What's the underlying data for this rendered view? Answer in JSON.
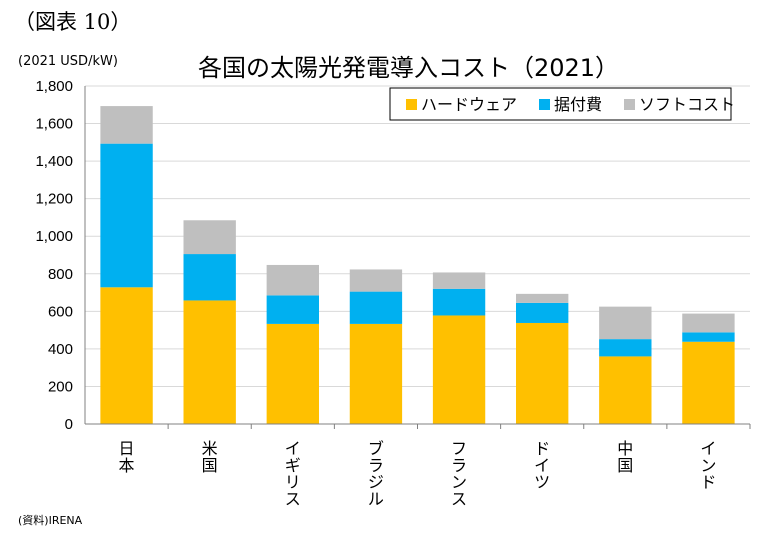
{
  "figure_label": "（図表 10）",
  "unit": "(2021 USD/kW)",
  "source": "(資料)IRENA",
  "colors": {
    "hardware": "#FFC000",
    "installation": "#00B0F0",
    "soft": "#BFBFBF",
    "grid": "#D9D9D9",
    "axis": "#808080"
  },
  "chart_data": {
    "type": "bar",
    "stacked": true,
    "title": "各国の太陽光発電導入コスト（2021）",
    "ylabel": "(2021 USD/kW)",
    "ylim": [
      0,
      1800
    ],
    "yticks": [
      0,
      200,
      400,
      600,
      800,
      1000,
      1200,
      1400,
      1600,
      1800
    ],
    "ytick_labels": [
      "0",
      "200",
      "400",
      "600",
      "800",
      "1,000",
      "1,200",
      "1,400",
      "1,600",
      "1,800"
    ],
    "grid": true,
    "legend_position": "top-right",
    "categories": [
      "日本",
      "米国",
      "イギリス",
      "ブラジル",
      "フランス",
      "ドイツ",
      "中国",
      "インド"
    ],
    "series": [
      {
        "name": "ハードウェア",
        "color": "#FFC000",
        "values": [
          728,
          658,
          533,
          533,
          578,
          538,
          360,
          438
        ]
      },
      {
        "name": "据付費",
        "color": "#00B0F0",
        "values": [
          765,
          247,
          152,
          172,
          142,
          107,
          92,
          50
        ]
      },
      {
        "name": "ソフトコスト",
        "color": "#BFBFBF",
        "values": [
          200,
          180,
          162,
          118,
          87,
          48,
          173,
          100
        ]
      }
    ]
  }
}
